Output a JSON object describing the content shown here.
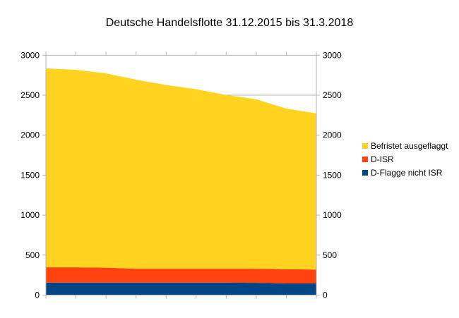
{
  "chart_data": {
    "type": "area",
    "stacked": true,
    "title": "Deutsche Handelsflotte 31.12.2015 bis 31.3.2018",
    "xlabel": "",
    "ylabel": "",
    "ylim": [
      0,
      3000
    ],
    "yticks": [
      "0",
      "500",
      "1000",
      "1500",
      "2000",
      "2500",
      "3000"
    ],
    "grid": true,
    "legend_position": "right",
    "x": [
      1,
      2,
      3,
      4,
      5,
      6,
      7,
      8,
      9,
      10
    ],
    "series": [
      {
        "name": "D-Flagge nicht ISR",
        "color": "#004586",
        "values": [
          155,
          155,
          155,
          155,
          155,
          155,
          155,
          153,
          145,
          145
        ]
      },
      {
        "name": "D-ISR",
        "color": "#ff420e",
        "values": [
          192,
          192,
          188,
          175,
          175,
          175,
          175,
          177,
          178,
          175
        ]
      },
      {
        "name": "Befristet ausgeflaggt",
        "color": "#ffd320",
        "values": [
          2488,
          2470,
          2430,
          2364,
          2298,
          2245,
          2172,
          2119,
          2009,
          1953
        ]
      }
    ],
    "legend_order": [
      "Befristet ausgeflaggt",
      "D-ISR",
      "D-Flagge nicht ISR"
    ]
  }
}
